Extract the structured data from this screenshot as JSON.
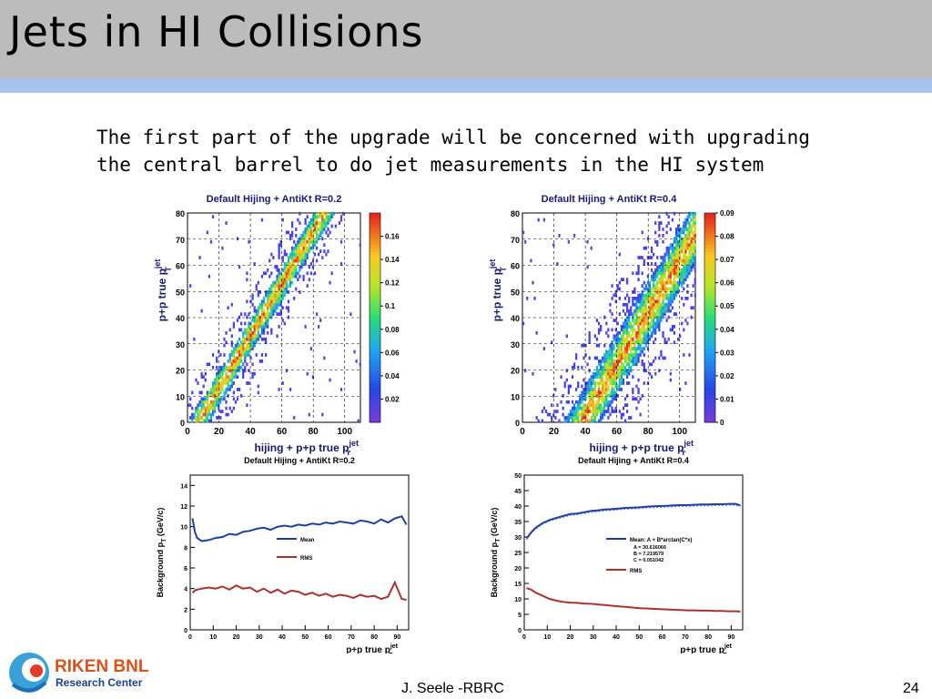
{
  "slide": {
    "title": "Jets in HI Collisions",
    "body": "The first part of the upgrade will be concerned with upgrading the central barrel to do jet measurements in the HI system",
    "footer_author": "J. Seele -RBRC",
    "page_number": "24"
  },
  "logo": {
    "line1": "RIKEN BNL",
    "line2": "Research Center"
  },
  "colors": {
    "title_bar": "#bcbcbc",
    "title_stripe": "#a8c4ec",
    "mean_line": "#1f3f9a",
    "rms_line": "#a83232"
  },
  "chart_data": [
    {
      "type": "heatmap",
      "title": "Default Hijing + AntiKt R=0.2",
      "xlabel": "hijing + p+p true p",
      "xlabel_sup": "jet",
      "xlabel_sub": "T",
      "ylabel": "p+p true p",
      "ylabel_sup": "jet",
      "ylabel_sub": "T",
      "xlim": [
        0,
        110
      ],
      "ylim": [
        0,
        80
      ],
      "xticks": [
        0,
        20,
        40,
        60,
        80,
        100
      ],
      "yticks": [
        0,
        10,
        20,
        30,
        40,
        50,
        60,
        70,
        80
      ],
      "colorbar_ticks": [
        "0.02",
        "0.04",
        "0.06",
        "0.08",
        "0.1",
        "0.12",
        "0.14",
        "0.16"
      ],
      "colorbar_range": [
        0,
        0.18
      ],
      "band": {
        "slope": 1.0,
        "offset": 7,
        "width": 7
      },
      "grid": true
    },
    {
      "type": "heatmap",
      "title": "Default Hijing + AntiKt R=0.4",
      "xlabel": "hijing + p+p true p",
      "xlabel_sup": "jet",
      "xlabel_sub": "T",
      "ylabel": "p+p true p",
      "ylabel_sup": "jet",
      "ylabel_sub": "T",
      "xlim": [
        0,
        110
      ],
      "ylim": [
        0,
        80
      ],
      "xticks": [
        0,
        20,
        40,
        60,
        80,
        100
      ],
      "yticks": [
        0,
        10,
        20,
        30,
        40,
        50,
        60,
        70,
        80
      ],
      "colorbar_ticks": [
        "0",
        "0.01",
        "0.02",
        "0.03",
        "0.04",
        "0.05",
        "0.06",
        "0.07",
        "0.08",
        "0.09"
      ],
      "colorbar_range": [
        0,
        0.09
      ],
      "band": {
        "slope": 1.0,
        "offset": 38,
        "width": 12
      },
      "grid": true
    },
    {
      "type": "line",
      "title": "Default Hijing + AntiKt R=0.2",
      "xlabel": "p+p true p",
      "xlabel_sup": "jet",
      "xlabel_sub": "T",
      "ylabel": "Background p",
      "ylabel_sub": "T",
      "ylabel_unit": " (GeV/c)",
      "xlim": [
        0,
        95
      ],
      "ylim": [
        0,
        15
      ],
      "xticks": [
        0,
        10,
        20,
        30,
        40,
        50,
        60,
        70,
        80,
        90
      ],
      "yticks": [
        0,
        2,
        4,
        6,
        8,
        10,
        12,
        14
      ],
      "x": [
        1,
        2,
        3,
        5,
        8,
        11,
        14,
        17,
        20,
        23,
        26,
        29,
        32,
        35,
        38,
        41,
        44,
        47,
        50,
        53,
        56,
        59,
        62,
        65,
        68,
        71,
        74,
        77,
        80,
        83,
        86,
        89,
        92,
        94
      ],
      "series": [
        {
          "name": "Mean",
          "values": [
            10.8,
            9.5,
            8.9,
            8.6,
            8.7,
            8.9,
            9.0,
            9.3,
            9.2,
            9.5,
            9.6,
            9.8,
            9.9,
            9.7,
            10.0,
            10.1,
            10.0,
            10.2,
            10.1,
            10.3,
            10.2,
            10.4,
            10.3,
            10.5,
            10.4,
            10.3,
            10.6,
            10.5,
            10.3,
            10.7,
            10.4,
            10.8,
            11.0,
            10.2
          ]
        },
        {
          "name": "RMS",
          "values": [
            3.6,
            3.8,
            3.9,
            4.0,
            4.1,
            4.0,
            4.2,
            3.9,
            4.3,
            4.0,
            4.1,
            3.7,
            4.0,
            3.6,
            3.9,
            3.5,
            3.8,
            3.7,
            3.4,
            3.6,
            3.3,
            3.5,
            3.2,
            3.4,
            3.3,
            3.1,
            3.4,
            3.2,
            3.3,
            3.0,
            3.2,
            4.6,
            3.0,
            2.9
          ]
        }
      ],
      "legend_placement": "center"
    },
    {
      "type": "line",
      "title": "Default Hijing + AntiKt R=0.4",
      "xlabel": "p+p true p",
      "xlabel_sup": "jet",
      "xlabel_sub": "T",
      "ylabel": "Background p",
      "ylabel_sub": "T",
      "ylabel_unit": " (GeV/c)",
      "xlim": [
        0,
        95
      ],
      "ylim": [
        0,
        50
      ],
      "xticks": [
        0,
        10,
        20,
        30,
        40,
        50,
        60,
        70,
        80,
        90
      ],
      "yticks": [
        0,
        5,
        10,
        15,
        20,
        25,
        30,
        35,
        40,
        45,
        50
      ],
      "x": [
        1,
        3,
        5,
        8,
        11,
        14,
        17,
        20,
        23,
        26,
        29,
        32,
        35,
        38,
        41,
        44,
        47,
        50,
        53,
        56,
        59,
        62,
        65,
        68,
        71,
        74,
        77,
        80,
        83,
        86,
        89,
        92,
        94
      ],
      "series": [
        {
          "name": "Mean: A + B*arctan(C*x)",
          "values": [
            29.5,
            31.5,
            33.0,
            34.5,
            35.5,
            36.2,
            36.8,
            37.4,
            37.6,
            38.0,
            38.4,
            38.6,
            38.9,
            39.0,
            39.2,
            39.4,
            39.5,
            39.6,
            39.8,
            39.9,
            40.0,
            40.1,
            40.2,
            40.3,
            40.3,
            40.4,
            40.5,
            40.5,
            40.6,
            40.6,
            40.7,
            40.7,
            40.2
          ]
        },
        {
          "name": "RMS",
          "values": [
            13.5,
            13.0,
            12.0,
            11.0,
            10.0,
            9.4,
            9.0,
            8.8,
            8.7,
            8.5,
            8.4,
            8.2,
            8.0,
            7.8,
            7.6,
            7.4,
            7.2,
            7.0,
            6.9,
            6.8,
            6.7,
            6.6,
            6.5,
            6.4,
            6.3,
            6.3,
            6.2,
            6.2,
            6.1,
            6.1,
            6.0,
            6.0,
            5.9
          ]
        }
      ],
      "fit_params": [
        "A = 30.616066",
        "B = 7.219579",
        "C = 0.051042"
      ],
      "legend_placement": "center"
    }
  ]
}
